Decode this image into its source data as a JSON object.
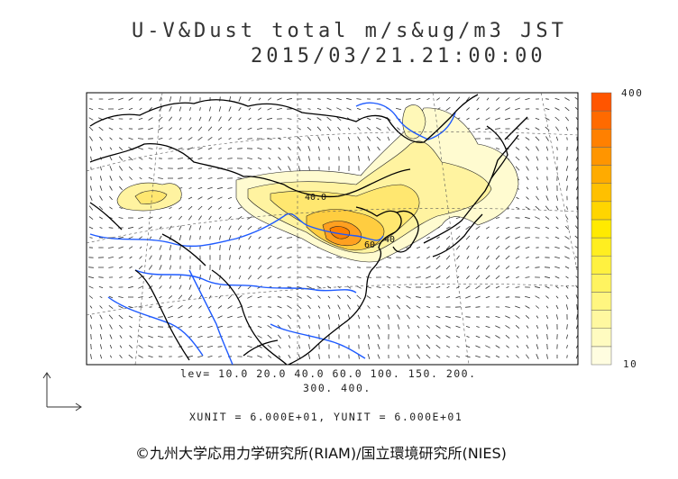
{
  "title": {
    "line1": "U-V&Dust total m/s&ug/m3 JST",
    "line2": "2015/03/21.21:00:00"
  },
  "legend": {
    "levels_line1": "lev= 10.0 20.0 40.0 60.0 100. 150. 200.",
    "levels_line2": "300. 400.",
    "units": "XUNIT = 6.000E+01, YUNIT = 6.000E+01"
  },
  "colorbar": {
    "max_label": "400",
    "min_label": "10",
    "colors": [
      "#fffde0",
      "#fffbc0",
      "#fff8a0",
      "#fff680",
      "#fff360",
      "#fff140",
      "#ffee20",
      "#ffea00",
      "#ffd500",
      "#ffc000",
      "#ffab00",
      "#ff9500",
      "#ff8000",
      "#ff6a00",
      "#ff5500"
    ]
  },
  "contour_labels": [
    "40.0",
    "60",
    "40"
  ],
  "copyright": "©九州大学応用力学研究所(RIAM)/国立環境研究所(NIES)",
  "icons": [
    "axis-arrows-icon"
  ],
  "colors": {
    "land_border": "#000000",
    "river": "#1e5aff",
    "dust_low": "#fff6b0",
    "dust_high": "#ff8a00"
  }
}
